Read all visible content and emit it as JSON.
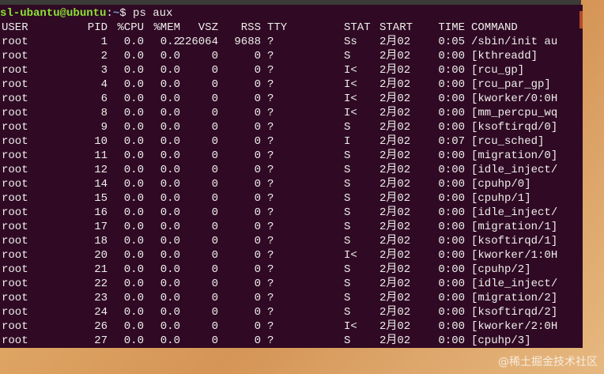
{
  "terminal": {
    "prompt_user_host": "sl-ubantu@ubuntu",
    "prompt_sep": ":",
    "prompt_path": "~",
    "prompt_symbol": "$ ",
    "command": "ps aux",
    "background_color": "#300a24",
    "prompt_color": "#8ae234"
  },
  "table": {
    "headers": [
      "USER",
      "PID",
      "%CPU",
      "%MEM",
      "VSZ",
      "RSS",
      "TTY",
      "STAT",
      "START",
      "TIME",
      "COMMAND"
    ],
    "rows": [
      [
        "root",
        "1",
        "0.0",
        "0.2",
        "226064",
        "9688",
        "?",
        "Ss",
        "2月02",
        "0:05",
        "/sbin/init au"
      ],
      [
        "root",
        "2",
        "0.0",
        "0.0",
        "0",
        "0",
        "?",
        "S",
        "2月02",
        "0:00",
        "[kthreadd]"
      ],
      [
        "root",
        "3",
        "0.0",
        "0.0",
        "0",
        "0",
        "?",
        "I<",
        "2月02",
        "0:00",
        "[rcu_gp]"
      ],
      [
        "root",
        "4",
        "0.0",
        "0.0",
        "0",
        "0",
        "?",
        "I<",
        "2月02",
        "0:00",
        "[rcu_par_gp]"
      ],
      [
        "root",
        "6",
        "0.0",
        "0.0",
        "0",
        "0",
        "?",
        "I<",
        "2月02",
        "0:00",
        "[kworker/0:0H"
      ],
      [
        "root",
        "8",
        "0.0",
        "0.0",
        "0",
        "0",
        "?",
        "I<",
        "2月02",
        "0:00",
        "[mm_percpu_wq"
      ],
      [
        "root",
        "9",
        "0.0",
        "0.0",
        "0",
        "0",
        "?",
        "S",
        "2月02",
        "0:00",
        "[ksoftirqd/0]"
      ],
      [
        "root",
        "10",
        "0.0",
        "0.0",
        "0",
        "0",
        "?",
        "I",
        "2月02",
        "0:07",
        "[rcu_sched]"
      ],
      [
        "root",
        "11",
        "0.0",
        "0.0",
        "0",
        "0",
        "?",
        "S",
        "2月02",
        "0:00",
        "[migration/0]"
      ],
      [
        "root",
        "12",
        "0.0",
        "0.0",
        "0",
        "0",
        "?",
        "S",
        "2月02",
        "0:00",
        "[idle_inject/"
      ],
      [
        "root",
        "14",
        "0.0",
        "0.0",
        "0",
        "0",
        "?",
        "S",
        "2月02",
        "0:00",
        "[cpuhp/0]"
      ],
      [
        "root",
        "15",
        "0.0",
        "0.0",
        "0",
        "0",
        "?",
        "S",
        "2月02",
        "0:00",
        "[cpuhp/1]"
      ],
      [
        "root",
        "16",
        "0.0",
        "0.0",
        "0",
        "0",
        "?",
        "S",
        "2月02",
        "0:00",
        "[idle_inject/"
      ],
      [
        "root",
        "17",
        "0.0",
        "0.0",
        "0",
        "0",
        "?",
        "S",
        "2月02",
        "0:00",
        "[migration/1]"
      ],
      [
        "root",
        "18",
        "0.0",
        "0.0",
        "0",
        "0",
        "?",
        "S",
        "2月02",
        "0:00",
        "[ksoftirqd/1]"
      ],
      [
        "root",
        "20",
        "0.0",
        "0.0",
        "0",
        "0",
        "?",
        "I<",
        "2月02",
        "0:00",
        "[kworker/1:0H"
      ],
      [
        "root",
        "21",
        "0.0",
        "0.0",
        "0",
        "0",
        "?",
        "S",
        "2月02",
        "0:00",
        "[cpuhp/2]"
      ],
      [
        "root",
        "22",
        "0.0",
        "0.0",
        "0",
        "0",
        "?",
        "S",
        "2月02",
        "0:00",
        "[idle_inject/"
      ],
      [
        "root",
        "23",
        "0.0",
        "0.0",
        "0",
        "0",
        "?",
        "S",
        "2月02",
        "0:00",
        "[migration/2]"
      ],
      [
        "root",
        "24",
        "0.0",
        "0.0",
        "0",
        "0",
        "?",
        "S",
        "2月02",
        "0:00",
        "[ksoftirqd/2]"
      ],
      [
        "root",
        "26",
        "0.0",
        "0.0",
        "0",
        "0",
        "?",
        "I<",
        "2月02",
        "0:00",
        "[kworker/2:0H"
      ],
      [
        "root",
        "27",
        "0.0",
        "0.0",
        "0",
        "0",
        "?",
        "S",
        "2月02",
        "0:00",
        "[cpuhp/3]"
      ]
    ]
  },
  "watermark": "@稀土掘金技术社区"
}
